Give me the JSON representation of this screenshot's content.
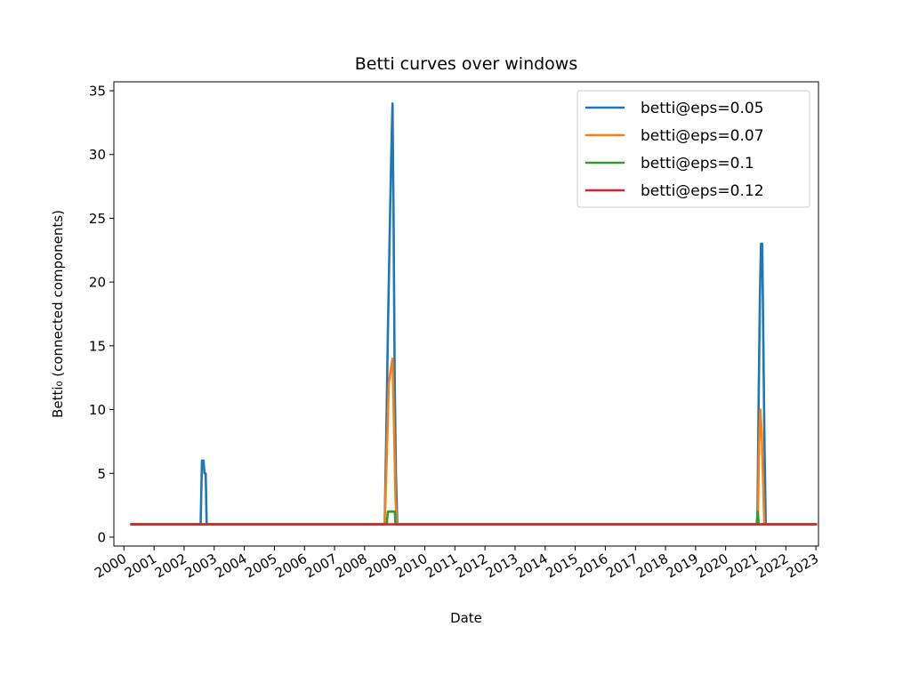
{
  "chart_data": {
    "type": "line",
    "title": "Betti curves over windows",
    "xlabel": "Date",
    "ylabel": "Betti₀ (connected components)",
    "x_ticks": [
      "2000",
      "2001",
      "2002",
      "2003",
      "2004",
      "2005",
      "2006",
      "2007",
      "2008",
      "2009",
      "2010",
      "2011",
      "2012",
      "2013",
      "2014",
      "2015",
      "2016",
      "2017",
      "2018",
      "2019",
      "2020",
      "2021",
      "2022",
      "2023"
    ],
    "y_ticks": [
      0,
      5,
      10,
      15,
      20,
      25,
      30,
      35
    ],
    "xlim": [
      "1999-09-01",
      "2023-02-01"
    ],
    "ylim": [
      -0.7,
      35.7
    ],
    "grid": false,
    "legend_position": "top-right",
    "series": [
      {
        "name": "betti@eps=0.05",
        "color": "#1f77b4",
        "points": [
          [
            "2000-04-01",
            1
          ],
          [
            "2002-07-20",
            1
          ],
          [
            "2002-08-05",
            6
          ],
          [
            "2002-08-25",
            6
          ],
          [
            "2002-09-05",
            5
          ],
          [
            "2002-09-20",
            5
          ],
          [
            "2002-10-01",
            1
          ],
          [
            "2008-09-01",
            1
          ],
          [
            "2008-09-20",
            8
          ],
          [
            "2008-10-10",
            16
          ],
          [
            "2008-11-01",
            24
          ],
          [
            "2008-11-20",
            30
          ],
          [
            "2008-12-05",
            34
          ],
          [
            "2008-12-18",
            25
          ],
          [
            "2009-01-01",
            12
          ],
          [
            "2009-01-15",
            5
          ],
          [
            "2009-02-01",
            1
          ],
          [
            "2021-01-20",
            1
          ],
          [
            "2021-02-05",
            11
          ],
          [
            "2021-02-20",
            19
          ],
          [
            "2021-03-05",
            23
          ],
          [
            "2021-03-20",
            23
          ],
          [
            "2021-04-01",
            16
          ],
          [
            "2021-04-15",
            8
          ],
          [
            "2021-05-01",
            1
          ],
          [
            "2022-12-31",
            1
          ]
        ]
      },
      {
        "name": "betti@eps=0.07",
        "color": "#ff7f0e",
        "points": [
          [
            "2000-04-01",
            1
          ],
          [
            "2008-09-01",
            1
          ],
          [
            "2008-09-20",
            5
          ],
          [
            "2008-10-20",
            12
          ],
          [
            "2008-11-10",
            13
          ],
          [
            "2008-12-05",
            14
          ],
          [
            "2008-12-25",
            8
          ],
          [
            "2009-01-10",
            3
          ],
          [
            "2009-01-25",
            1
          ],
          [
            "2021-01-25",
            1
          ],
          [
            "2021-02-10",
            7
          ],
          [
            "2021-02-25",
            10
          ],
          [
            "2021-03-15",
            8
          ],
          [
            "2021-04-01",
            4
          ],
          [
            "2021-04-15",
            1
          ],
          [
            "2022-12-31",
            1
          ]
        ]
      },
      {
        "name": "betti@eps=0.1",
        "color": "#2ca02c",
        "points": [
          [
            "2000-04-01",
            1
          ],
          [
            "2008-09-25",
            1
          ],
          [
            "2008-10-10",
            2
          ],
          [
            "2009-01-01",
            2
          ],
          [
            "2009-01-10",
            1
          ],
          [
            "2021-01-10",
            1
          ],
          [
            "2021-01-25",
            2
          ],
          [
            "2021-02-05",
            1
          ],
          [
            "2022-12-31",
            1
          ]
        ]
      },
      {
        "name": "betti@eps=0.12",
        "color": "#d62728",
        "points": [
          [
            "2000-04-01",
            1
          ],
          [
            "2022-12-31",
            1
          ]
        ]
      }
    ]
  }
}
